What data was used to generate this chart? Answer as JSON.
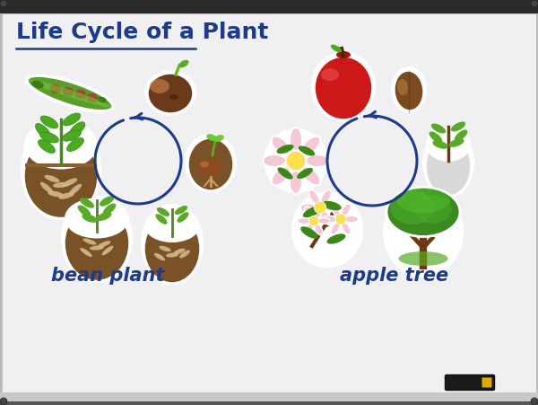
{
  "title": "Life Cycle of a Plant",
  "title_color": "#1e3a8a",
  "title_fontsize": 18,
  "board_color": "#f0f0f2",
  "board_edge_color": "#bbbbbb",
  "board_top_color": "#3a3a3a",
  "board_bottom_color": "#c0c0c0",
  "label_bean": "bean plant",
  "label_apple": "apple tree",
  "label_color": "#1e3a8a",
  "label_fontsize": 15,
  "circle_color": "#1e3a8a",
  "circle_lw": 2.2,
  "underline_color": "#1e3a8a",
  "marker_color": "#222222",
  "marker_yellow": "#ddaa00"
}
